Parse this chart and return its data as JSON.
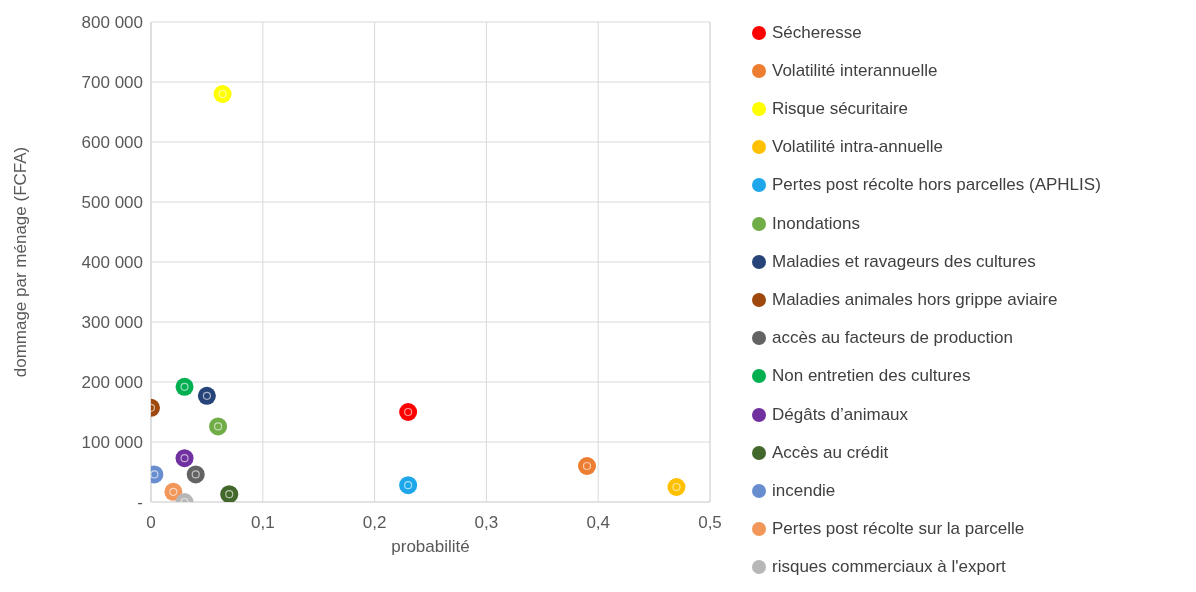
{
  "chart_data": {
    "type": "scatter",
    "xlabel": "probabilité",
    "ylabel": "dommage par ménage (FCFA)",
    "xlim": [
      0,
      0.5
    ],
    "xticks": [
      0,
      {
        "value": 0.1,
        "label": "0,1"
      },
      {
        "value": 0.2,
        "label": "0,2"
      },
      {
        "value": 0.3,
        "label": "0,3"
      },
      {
        "value": 0.4,
        "label": "0,4"
      },
      {
        "value": 0.5,
        "label": "0,5"
      }
    ],
    "ylim": [
      0,
      800000
    ],
    "yticks": [
      {
        "value": 0,
        "label": "-"
      },
      {
        "value": 100000,
        "label": "100 000"
      },
      {
        "value": 200000,
        "label": "200 000"
      },
      {
        "value": 300000,
        "label": "300 000"
      },
      {
        "value": 400000,
        "label": "400 000"
      },
      {
        "value": 500000,
        "label": "500 000"
      },
      {
        "value": 600000,
        "label": "600 000"
      },
      {
        "value": 700000,
        "label": "700 000"
      },
      {
        "value": 800000,
        "label": "800 000"
      }
    ],
    "grid": true,
    "legend": "right",
    "marker": "circle",
    "series": [
      {
        "name": "Sécheresse",
        "color": "#ff0000",
        "x": [
          0.23
        ],
        "values": [
          150000
        ]
      },
      {
        "name": "Volatilité interannuelle",
        "color": "#ed7d31",
        "x": [
          0.39
        ],
        "values": [
          60000
        ]
      },
      {
        "name": "Risque sécuritaire",
        "color": "#ffff00",
        "x": [
          0.064
        ],
        "values": [
          680000
        ]
      },
      {
        "name": "Volatilité intra-annuelle",
        "color": "#ffc000",
        "x": [
          0.47
        ],
        "values": [
          25000
        ]
      },
      {
        "name": "Pertes post récolte hors parcelles (APHLIS)",
        "color": "#1ea7ea",
        "x": [
          0.23
        ],
        "values": [
          28000
        ]
      },
      {
        "name": "Inondations",
        "color": "#70ad47",
        "x": [
          0.06
        ],
        "values": [
          126000
        ]
      },
      {
        "name": "Maladies et ravageurs des cultures",
        "color": "#264478",
        "x": [
          0.05
        ],
        "values": [
          177000
        ]
      },
      {
        "name": "Maladies animales hors grippe aviaire",
        "color": "#9e480e",
        "x": [
          0
        ],
        "values": [
          157000
        ]
      },
      {
        "name": "accès au facteurs de production",
        "color": "#636363",
        "x": [
          0.04
        ],
        "values": [
          46000
        ]
      },
      {
        "name": "Non entretien des cultures",
        "color": "#00b050",
        "x": [
          0.03
        ],
        "values": [
          192000
        ]
      },
      {
        "name": "Dégâts d’animaux",
        "color": "#7030a0",
        "x": [
          0.03
        ],
        "values": [
          73000
        ]
      },
      {
        "name": "Accès au crédit",
        "color": "#43682b",
        "x": [
          0.07
        ],
        "values": [
          13000
        ]
      },
      {
        "name": "incendie",
        "color": "#698ed0",
        "x": [
          0.003
        ],
        "values": [
          46000
        ]
      },
      {
        "name": "Pertes post récolte sur la parcelle",
        "color": "#f1975a",
        "x": [
          0.02
        ],
        "values": [
          17000
        ]
      },
      {
        "name": "risques commerciaux à l'export",
        "color": "#b7b7b7",
        "x": [
          0.03
        ],
        "values": [
          0
        ]
      }
    ]
  }
}
